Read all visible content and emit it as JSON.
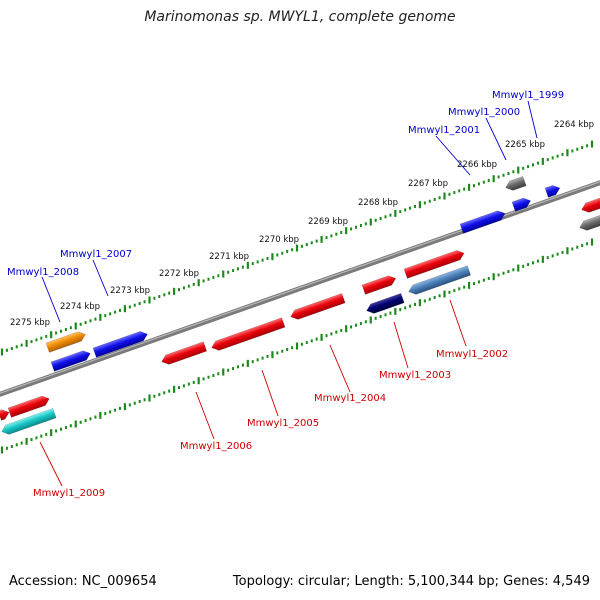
{
  "title": "Marinomonas sp. MWYL1, complete genome",
  "footer": {
    "accession": "Accession: NC_009654",
    "stats": "Topology: circular; Length: 5,100,344 bp; Genes: 4,549"
  },
  "colors": {
    "forward_gene_label": "#0000cc",
    "reverse_gene_label": "#cc0000",
    "backbone": "#7a7a7a",
    "ticks": "#1a8a1a",
    "red": "#e8000b",
    "blue": "#1010e8",
    "gray": "#6b6b6b",
    "orange": "#f08a00",
    "cyan": "#1ac6c6",
    "navy": "#000070",
    "steelblue": "#4a80b8"
  },
  "kbp_labels": [
    "2264 kbp",
    "2265 kbp",
    "2266 kbp",
    "2267 kbp",
    "2268 kbp",
    "2269 kbp",
    "2270 kbp",
    "2271 kbp",
    "2272 kbp",
    "2273 kbp",
    "2274 kbp",
    "2275 kbp"
  ],
  "gene_labels": {
    "forward": [
      "Mmwyl1_1999",
      "Mmwyl1_2000",
      "Mmwyl1_2001",
      "Mmwyl1_2007",
      "Mmwyl1_2008"
    ],
    "reverse": [
      "Mmwyl1_2002",
      "Mmwyl1_2003",
      "Mmwyl1_2004",
      "Mmwyl1_2005",
      "Mmwyl1_2006",
      "Mmwyl1_2009"
    ]
  }
}
